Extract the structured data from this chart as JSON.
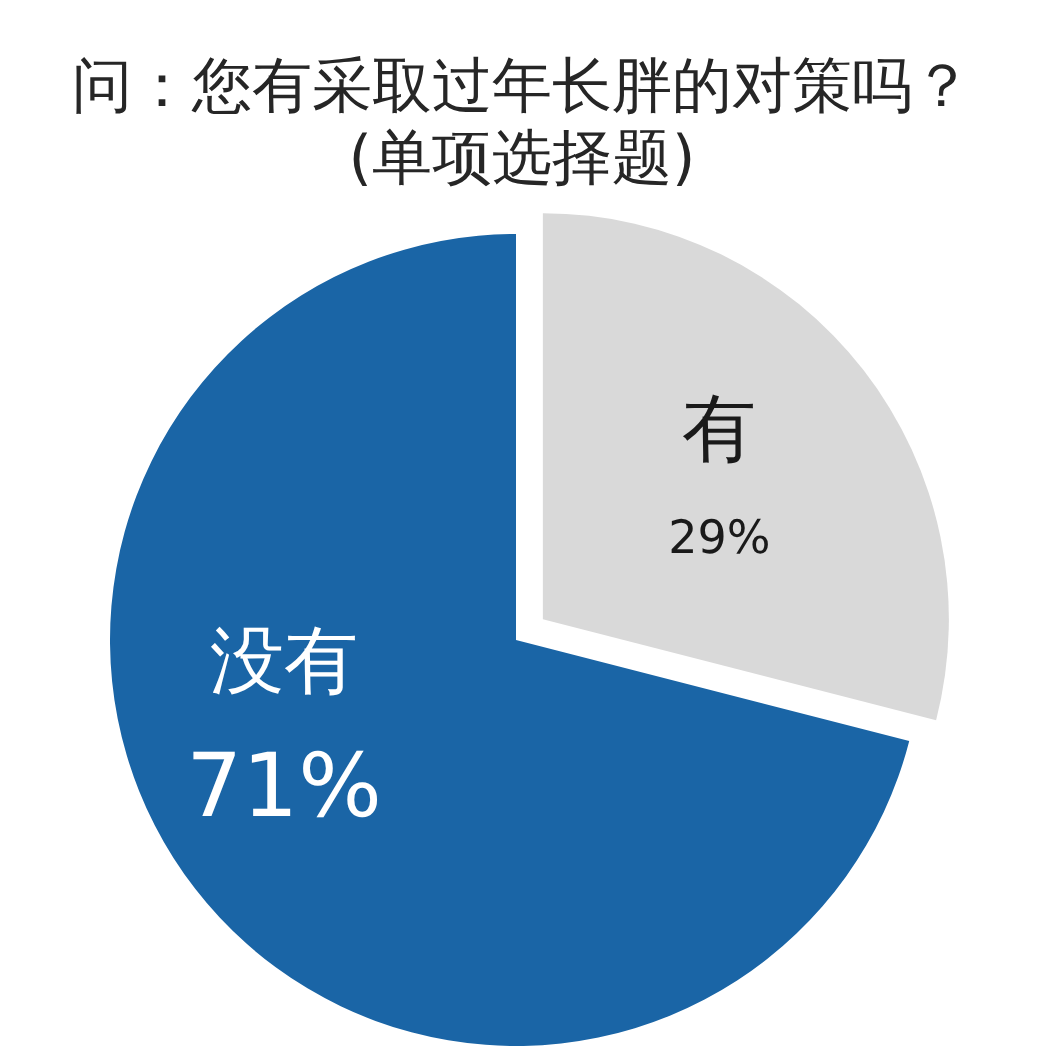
{
  "chart_data": {
    "type": "pie",
    "title": "问：您有采取过年长胖的对策吗？",
    "subtitle": "(单项选择题)",
    "categories": [
      "有",
      "没有"
    ],
    "values": [
      29,
      71
    ],
    "colors": [
      "#d9d9d9",
      "#1a65a6"
    ],
    "value_labels": [
      "29%",
      "71%"
    ]
  }
}
